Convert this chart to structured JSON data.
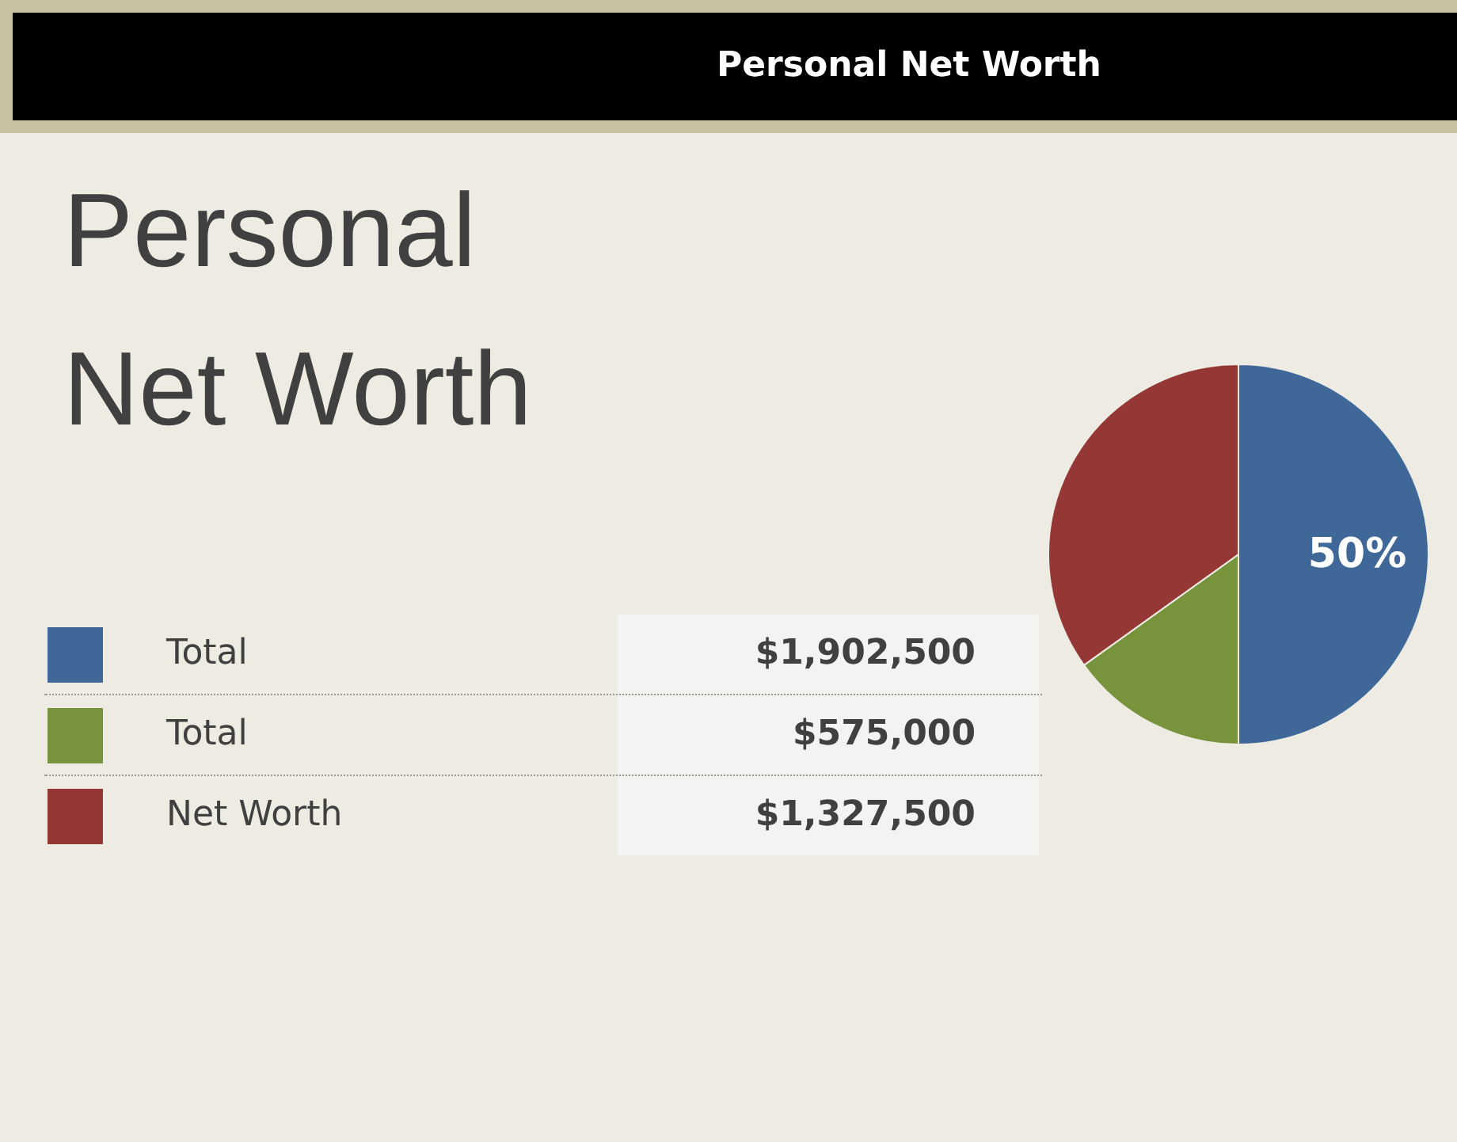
{
  "chart_data": {
    "type": "pie",
    "title": "Personal Net Worth",
    "subtitle": "Personal Net Worth",
    "categories": [
      "Total",
      "Total",
      "Net Worth"
    ],
    "values": [
      50,
      15.1,
      34.9
    ],
    "annotations": [
      "$1,902,500",
      "$575,000",
      "$1,327,500"
    ],
    "colors": [
      "#3f6899",
      "#77933c",
      "#953735"
    ],
    "value_labels": [
      "50%",
      null,
      null
    ],
    "legend": "left"
  }
}
